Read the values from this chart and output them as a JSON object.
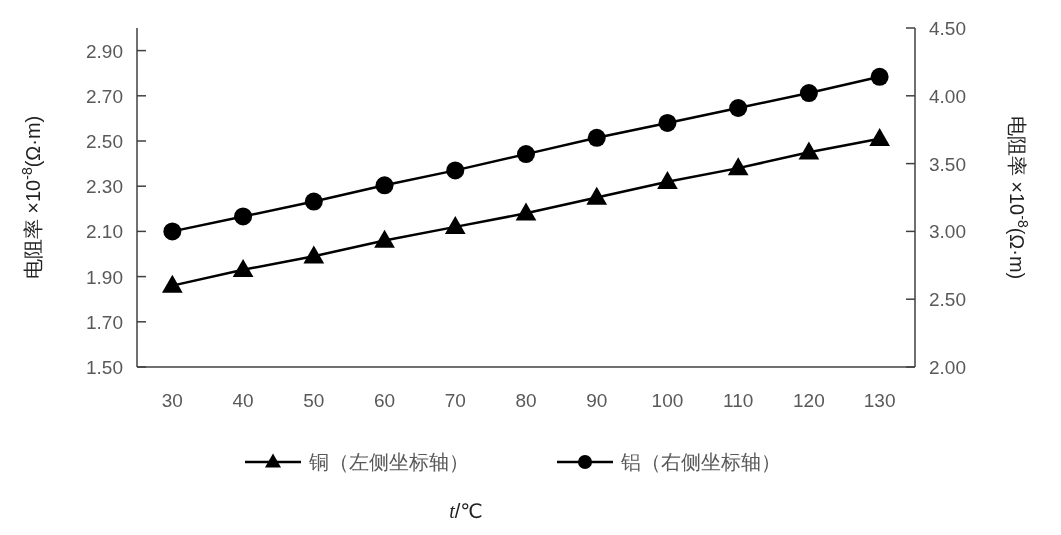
{
  "chart_data": {
    "type": "line",
    "categories": [
      "30",
      "40",
      "50",
      "60",
      "70",
      "80",
      "90",
      "100",
      "110",
      "120",
      "130"
    ],
    "series": [
      {
        "name": "铜（左侧坐标轴）",
        "color": "#000000",
        "marker": "triangle",
        "values": [
          1.86,
          1.93,
          1.99,
          2.06,
          2.12,
          2.18,
          2.25,
          2.32,
          2.38,
          2.45,
          2.51
        ]
      },
      {
        "name": "铝（右侧坐标轴）",
        "color": "#000000",
        "marker": "circle",
        "axis": "y2",
        "values": [
          3.0,
          3.11,
          3.22,
          3.34,
          3.45,
          3.57,
          3.69,
          3.8,
          3.91,
          4.02,
          4.14
        ]
      }
    ],
    "xlabel": "*t*/℃",
    "ylabel": "电阻率 ×10$^{-8}$(Ω·m)",
    "y2label": "电阻率 ×10$^{-8}$(Ω·m)",
    "ylim": [
      1.5,
      3.0
    ],
    "yticks": [
      {
        "value": 1.5,
        "label": "1.50"
      },
      {
        "value": 1.7,
        "label": "1.70"
      },
      {
        "value": 1.9,
        "label": "1.90"
      },
      {
        "value": 2.1,
        "label": "2.10"
      },
      {
        "value": 2.3,
        "label": "2.30"
      },
      {
        "value": 2.5,
        "label": "2.50"
      },
      {
        "value": 2.7,
        "label": "2.70"
      },
      {
        "value": 2.9,
        "label": "2.90"
      }
    ],
    "y2lim": [
      2.0,
      4.5
    ],
    "y2ticks": [
      {
        "value": 2.0,
        "label": "2.00"
      },
      {
        "value": 2.5,
        "label": "2.50"
      },
      {
        "value": 3.0,
        "label": "3.00"
      },
      {
        "value": 3.5,
        "label": "3.50"
      },
      {
        "value": 4.0,
        "label": "4.00"
      },
      {
        "value": 4.5,
        "label": "4.50"
      }
    ],
    "legend": "bottom",
    "grid": false
  }
}
